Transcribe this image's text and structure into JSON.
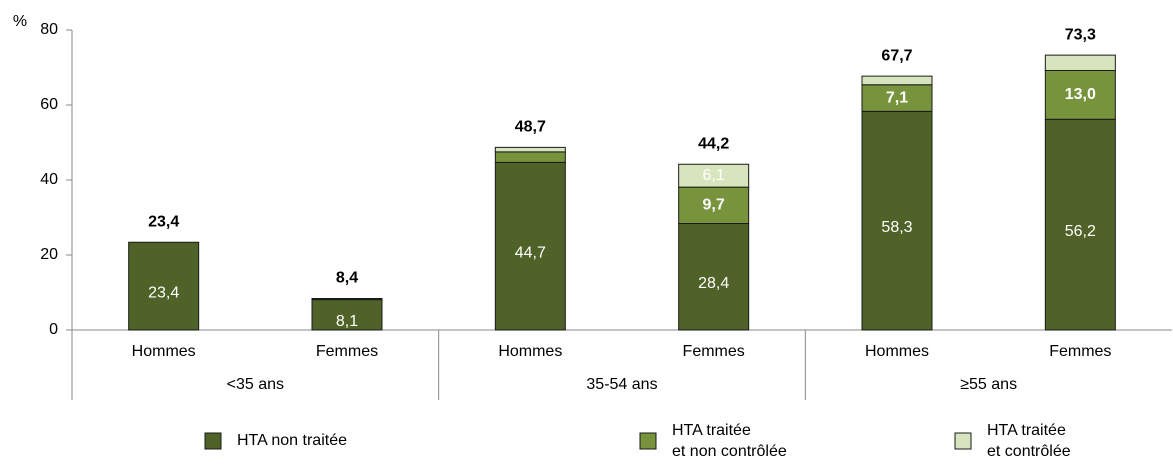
{
  "chart_data": {
    "type": "stacked_bar",
    "y_label": "%",
    "categories": [
      "Hommes",
      "Femmes",
      "Hommes",
      "Femmes",
      "Hommes",
      "Femmes"
    ],
    "groups": [
      "<35 ans",
      "35-54 ans",
      "≥55 ans"
    ],
    "series": [
      {
        "name": "HTA non traitée",
        "color": "#4f6228",
        "values": [
          23.4,
          8.1,
          44.7,
          28.4,
          58.3,
          56.2
        ],
        "value_labels": [
          "23,4",
          "8,1",
          "44,7",
          "28,4",
          "58,3",
          "56,2"
        ]
      },
      {
        "name": "HTA traitée\net non contrôlée",
        "color": "#77933c",
        "values": [
          0,
          0.2,
          2.8,
          9.7,
          7.1,
          13.0
        ],
        "value_labels": [
          null,
          null,
          null,
          "9,7",
          "7,1",
          "13,0"
        ]
      },
      {
        "name": "HTA traitée\net contrôlée",
        "color": "#d7e4bd",
        "values": [
          0,
          0.1,
          1.2,
          6.1,
          2.3,
          4.1
        ],
        "value_labels": [
          null,
          null,
          null,
          "6,1",
          null,
          null
        ]
      }
    ],
    "total_labels": [
      "23,4",
      "8,4",
      "48,7",
      "44,2",
      "67,7",
      "73,3"
    ],
    "ylim": [
      0,
      80
    ],
    "yticks": [
      0,
      20,
      40,
      60,
      80
    ],
    "grid": false
  }
}
